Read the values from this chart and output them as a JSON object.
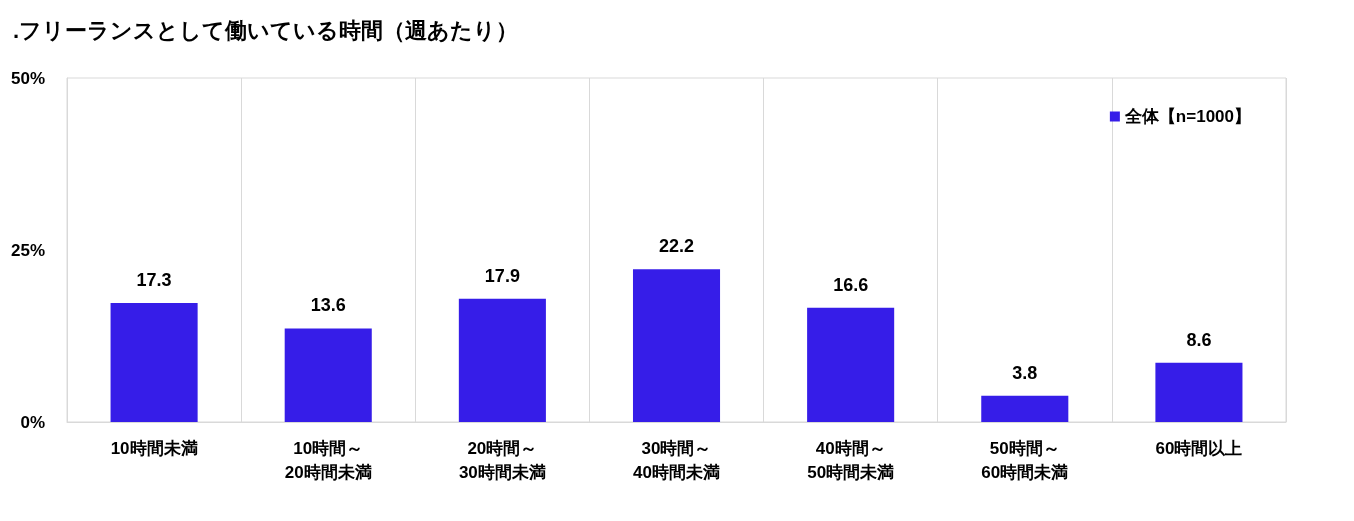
{
  "chart_data": {
    "type": "bar",
    "title": ".フリーランスとして働いている時間（週あたり）",
    "categories": [
      "10時間未満",
      "10時間～\n20時間未満",
      "20時間～\n30時間未満",
      "30時間～\n40時間未満",
      "40時間～\n50時間未満",
      "50時間～\n60時間未満",
      "60時間以上"
    ],
    "series": [
      {
        "name": "全体【n=1000】",
        "color": "#361de8",
        "values": [
          17.3,
          13.6,
          17.9,
          22.2,
          16.6,
          3.8,
          8.6
        ]
      }
    ],
    "ylim": [
      0,
      50
    ],
    "yticks": [
      {
        "value": 0,
        "label": "0%"
      },
      {
        "value": 25,
        "label": "25%"
      },
      {
        "value": 50,
        "label": "50%"
      }
    ],
    "grid": "x",
    "legend": "top right",
    "data_labels": true
  }
}
